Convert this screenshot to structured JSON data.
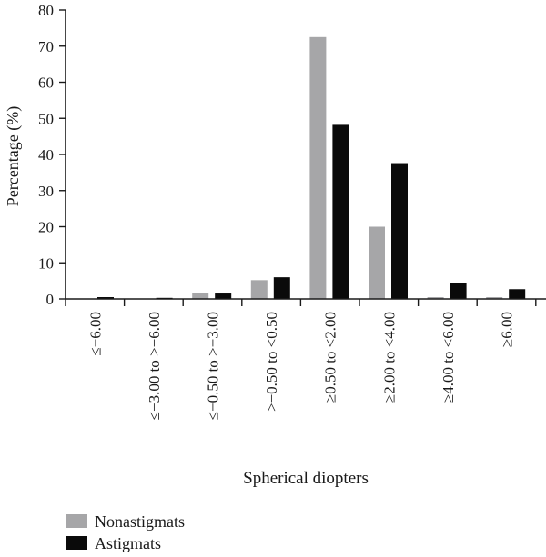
{
  "chart_data": {
    "type": "bar",
    "title": "",
    "xlabel": "Spherical diopters",
    "ylabel": "Percentage (%)",
    "ylim": [
      0,
      80
    ],
    "yticks": [
      0,
      10,
      20,
      30,
      40,
      50,
      60,
      70,
      80
    ],
    "grid": false,
    "legend_position": "bottom-left",
    "categories": [
      "≤−6.00",
      "≤−3.00 to >−6.00",
      "≤−0.50 to >−3.00",
      ">−0.50 to <0.50",
      "≥0.50 to <2.00",
      "≥2.00 to <4.00",
      "≥4.00 to <6.00",
      "≥6.00"
    ],
    "series": [
      {
        "name": "Nonastigmats",
        "color": "#a6a6a8",
        "values": [
          0,
          0,
          1.7,
          5.2,
          72.5,
          20.0,
          0.5,
          0.5
        ]
      },
      {
        "name": "Astigmats",
        "color": "#0a0a0a",
        "values": [
          0.5,
          0.3,
          1.5,
          6.0,
          48.2,
          37.6,
          4.3,
          2.7
        ]
      }
    ]
  }
}
